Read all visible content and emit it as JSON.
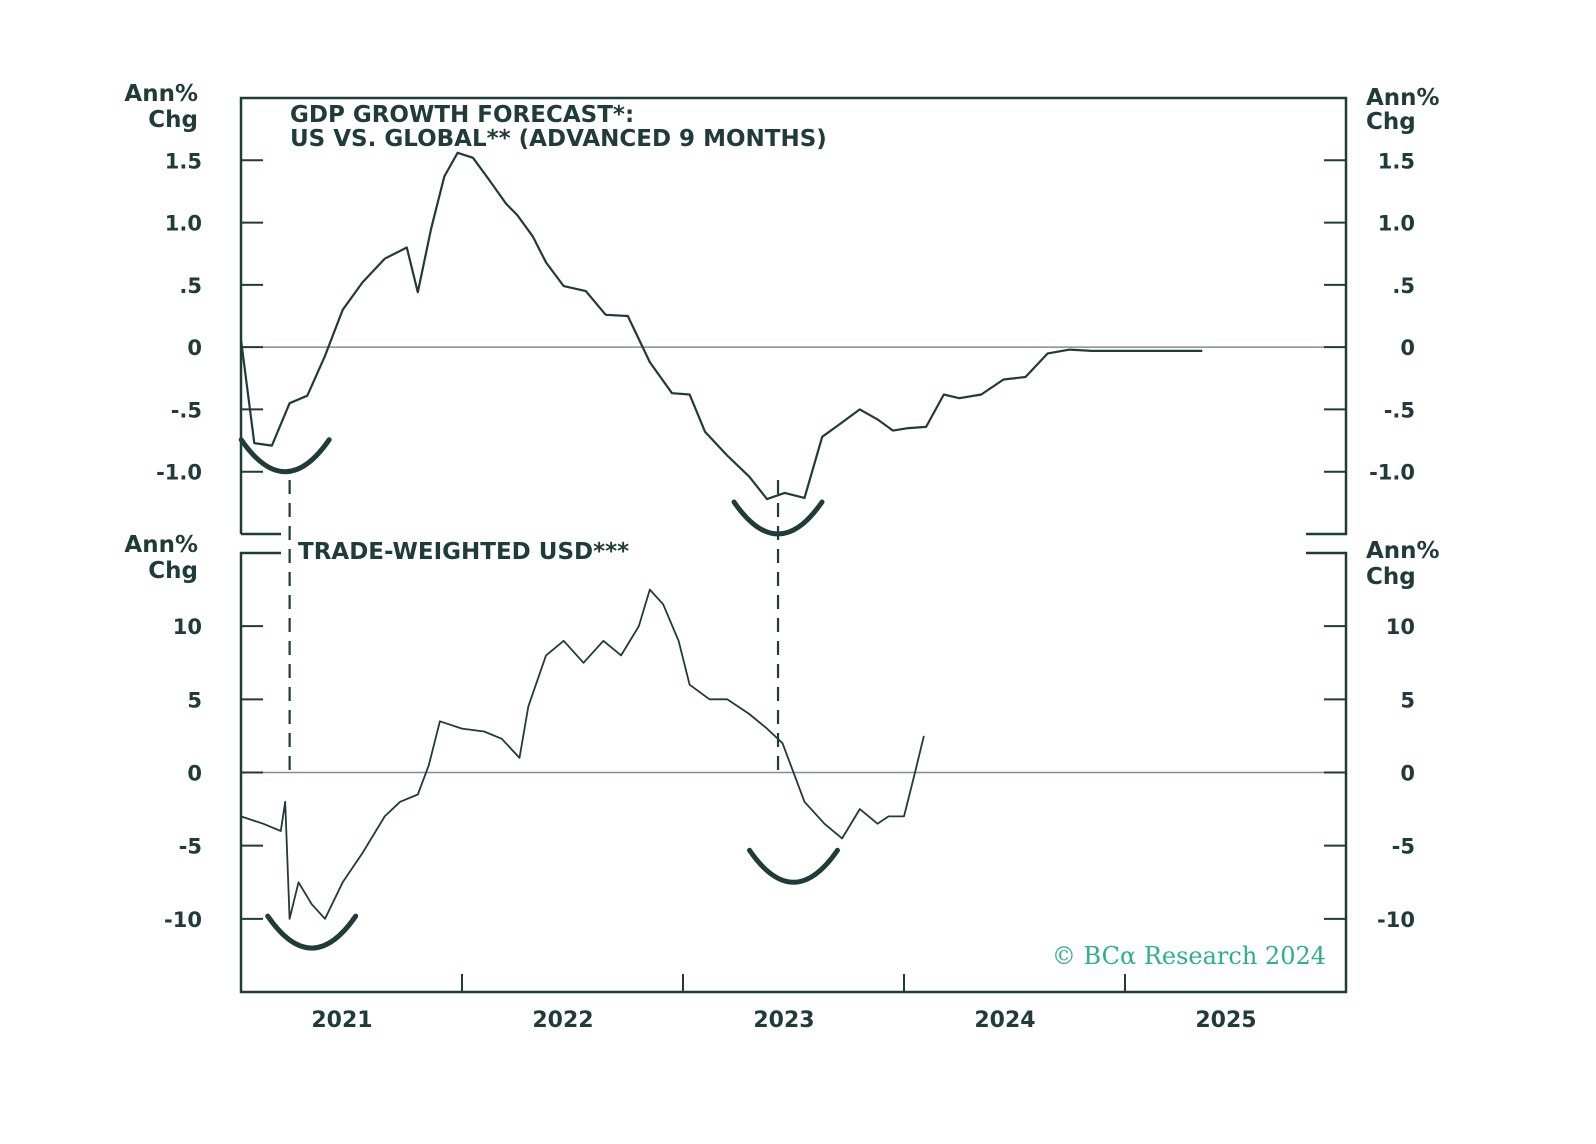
{
  "chart_data": [
    {
      "type": "line",
      "title": "GDP GROWTH FORECAST*:",
      "subtitle": "US VS. GLOBAL** (ADVANCED 9 MONTHS)",
      "ylabel_left": [
        "Ann%",
        "Chg"
      ],
      "ylabel_right": [
        "Ann%",
        "Chg"
      ],
      "ylim": [
        -1.5,
        2.0
      ],
      "yticks": [
        1.5,
        1.0,
        0.5,
        0,
        -0.5,
        -1.0
      ],
      "ytick_labels": [
        "1.5",
        "1.0",
        ".5",
        "0",
        "-.5",
        "-1.0"
      ],
      "zero_line": true,
      "series": [
        {
          "x": [
            2020.0,
            2020.06,
            2020.14,
            2020.22,
            2020.3,
            2020.38,
            2020.46,
            2020.55,
            2020.65,
            2020.75,
            2020.8,
            2020.86,
            2020.92,
            2020.98,
            2021.05,
            2021.12,
            2021.2,
            2021.25,
            2021.32,
            2021.38,
            2021.46,
            2021.56,
            2021.65,
            2021.75,
            2021.85,
            2021.95,
            2022.03,
            2022.1,
            2022.2,
            2022.3,
            2022.38,
            2022.46,
            2022.55,
            2022.63,
            2022.7,
            2022.8,
            2022.88,
            2022.95,
            2023.02,
            2023.1,
            2023.18,
            2023.25,
            2023.35,
            2023.45,
            2023.55,
            2023.65,
            2023.75,
            2023.85,
            2023.93,
            2024.02,
            2024.1,
            2024.2,
            2024.28,
            2024.35
          ],
          "y": [
            0.06,
            -0.77,
            -0.79,
            -0.45,
            -0.39,
            -0.07,
            0.3,
            0.52,
            0.71,
            0.8,
            0.44,
            0.95,
            1.37,
            1.56,
            1.52,
            1.35,
            1.15,
            1.06,
            0.89,
            0.68,
            0.49,
            0.45,
            0.26,
            0.25,
            -0.12,
            -0.37,
            -0.38,
            -0.68,
            -0.87,
            -1.04,
            -1.22,
            -1.17,
            -1.21,
            -0.72,
            -0.63,
            -0.5,
            -0.58,
            -0.67,
            -0.65,
            -0.64,
            -0.38,
            -0.41,
            -0.38,
            -0.26,
            -0.24,
            -0.05,
            -0.02,
            -0.03,
            -0.03,
            -0.03,
            -0.03,
            -0.03,
            -0.03,
            -0.03
          ]
        }
      ],
      "troughs": [
        {
          "x_center": 2020.2,
          "y_bottom": -1.0
        },
        {
          "x_center": 2022.43,
          "y_bottom": -1.5
        }
      ]
    },
    {
      "type": "line",
      "title": "TRADE-WEIGHTED USD***",
      "ylabel_left": [
        "Ann%",
        "Chg"
      ],
      "ylabel_right": [
        "Ann%",
        "Chg"
      ],
      "ylim": [
        -15,
        15
      ],
      "yticks": [
        10,
        5,
        0,
        -5,
        -10
      ],
      "ytick_labels": [
        "10",
        "5",
        "0",
        "-5",
        "-10"
      ],
      "zero_line": true,
      "series": [
        {
          "x": [
            2020.0,
            2020.1,
            2020.18,
            2020.2,
            2020.22,
            2020.26,
            2020.32,
            2020.38,
            2020.46,
            2020.55,
            2020.65,
            2020.72,
            2020.8,
            2020.85,
            2020.9,
            2021.0,
            2021.1,
            2021.18,
            2021.26,
            2021.3,
            2021.38,
            2021.46,
            2021.55,
            2021.64,
            2021.72,
            2021.8,
            2021.85,
            2021.91,
            2021.98,
            2022.03,
            2022.12,
            2022.2,
            2022.3,
            2022.38,
            2022.45,
            2022.55,
            2022.64,
            2022.72,
            2022.8,
            2022.88,
            2022.93,
            2023.0,
            2023.05,
            2023.09
          ],
          "y": [
            -3.0,
            -3.5,
            -4.0,
            -2.0,
            -10.0,
            -7.5,
            -9.0,
            -10.0,
            -7.5,
            -5.5,
            -3.0,
            -2.0,
            -1.5,
            0.5,
            3.5,
            3.0,
            2.8,
            2.3,
            1.0,
            4.5,
            8.0,
            9.0,
            7.5,
            9.0,
            8.0,
            10.0,
            12.5,
            11.5,
            9.0,
            6.0,
            5.0,
            5.0,
            4.0,
            3.0,
            2.0,
            -2.0,
            -3.5,
            -4.5,
            -2.5,
            -3.5,
            -3.0,
            -3.0,
            0.0,
            2.5
          ]
        }
      ],
      "troughs": [
        {
          "x_center": 2020.32,
          "y_bottom": -12.0
        },
        {
          "x_center": 2022.5,
          "y_bottom": -7.5
        }
      ]
    }
  ],
  "x_axis": {
    "xlim": [
      2020.0,
      2025.0
    ],
    "year_ticks": [
      2021,
      2022,
      2023,
      2024,
      2025
    ],
    "year_labels": [
      "2021",
      "2022",
      "2023",
      "2024",
      "2025"
    ]
  },
  "dashed_markers": [
    2020.22,
    2022.43
  ],
  "credit": "© BCα Research 2024",
  "colors": {
    "line": "#1f3b3a",
    "zero_line": "#7f8f8b",
    "credit": "#2bb08a"
  }
}
